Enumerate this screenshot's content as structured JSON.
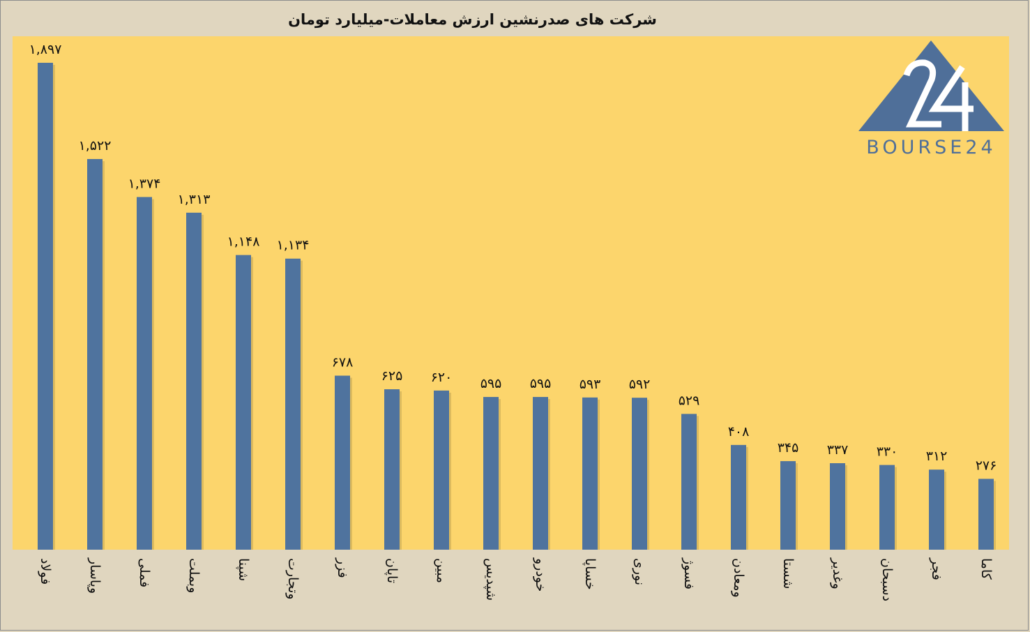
{
  "chart_data": {
    "type": "bar",
    "title": "شرکت های صدرنشین ارزش معاملات-میلیارد تومان",
    "categories": [
      "فولاد",
      "وپاسار",
      "فملی",
      "وبملت",
      "شپنا",
      "وتجارت",
      "فزر",
      "تاپان",
      "مبین",
      "شپدیس",
      "خودرو",
      "خساپا",
      "نوری",
      "فسوژ",
      "ومعادن",
      "شستا",
      "وغدیر",
      "دسبحان",
      "فجر",
      "کاما"
    ],
    "values": [
      1897,
      1522,
      1374,
      1313,
      1148,
      1134,
      678,
      625,
      620,
      595,
      595,
      593,
      592,
      529,
      408,
      345,
      337,
      330,
      312,
      276
    ],
    "value_labels": [
      "۱,۸۹۷",
      "۱,۵۲۲",
      "۱,۳۷۴",
      "۱,۳۱۳",
      "۱,۱۴۸",
      "۱,۱۳۴",
      "۶۷۸",
      "۶۲۵",
      "۶۲۰",
      "۵۹۵",
      "۵۹۵",
      "۵۹۳",
      "۵۹۲",
      "۵۲۹",
      "۴۰۸",
      "۳۴۵",
      "۳۳۷",
      "۳۳۰",
      "۳۱۲",
      "۲۷۶"
    ],
    "ylim": [
      0,
      1897
    ],
    "grid": false,
    "colors": {
      "bar": "#4f739e",
      "plot_bg": "#fcd56c",
      "page_bg": "#e0d6bf"
    }
  },
  "logo": {
    "text": "BOURSE24",
    "number": "24"
  }
}
